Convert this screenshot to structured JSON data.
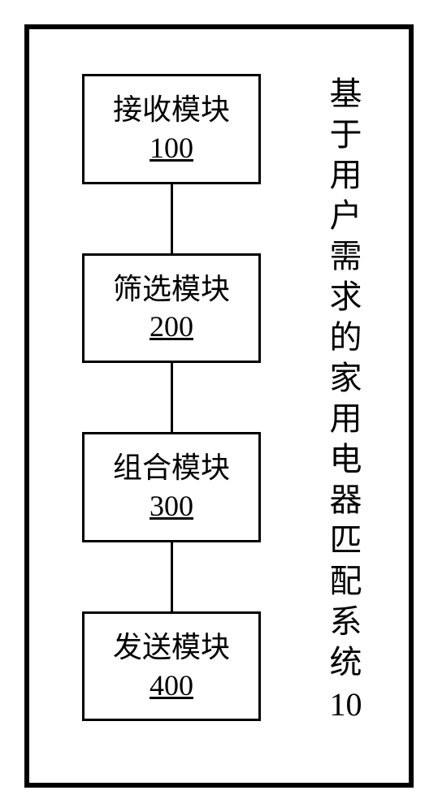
{
  "diagram": {
    "type": "flowchart",
    "outer_border_width": 6,
    "outer_border_color": "#000000",
    "background_color": "#ffffff",
    "nodes": [
      {
        "label": "接收模块",
        "number": "100",
        "border_color": "#000000",
        "border_width": 3
      },
      {
        "label": "筛选模块",
        "number": "200",
        "border_color": "#000000",
        "border_width": 3
      },
      {
        "label": "组合模块",
        "number": "300",
        "border_color": "#000000",
        "border_width": 3
      },
      {
        "label": "发送模块",
        "number": "400",
        "border_color": "#000000",
        "border_width": 3
      }
    ],
    "connector": {
      "color": "#000000",
      "width": 3,
      "length": 85
    },
    "title": {
      "text": "基于用户需求的家用电器匹配系统",
      "number": "10",
      "orientation": "vertical",
      "font_size": 40,
      "color": "#000000"
    },
    "module_font_size": 36,
    "text_color": "#000000"
  }
}
